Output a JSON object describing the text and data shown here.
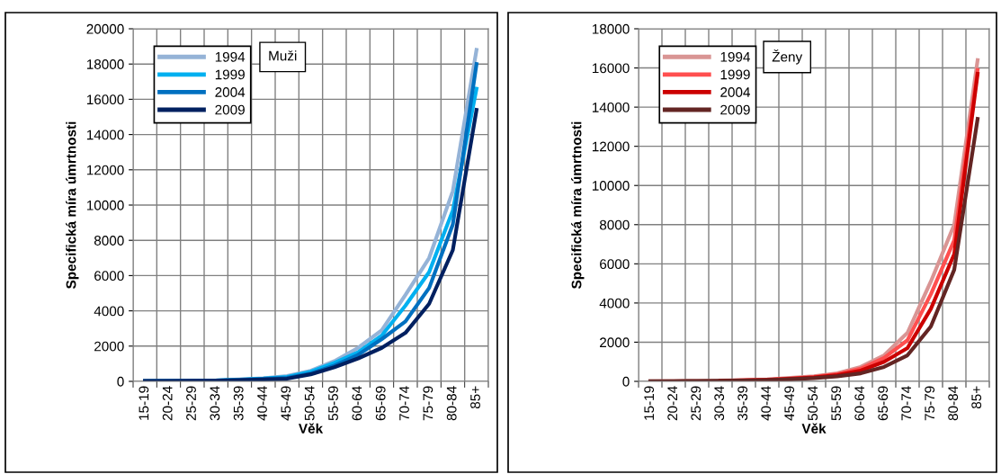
{
  "chart_data": [
    {
      "type": "line",
      "xlabel": "Věk",
      "ylabel": "Specifická míra úmrtnosti",
      "categories": [
        "15-19",
        "20-24",
        "25-29",
        "30-34",
        "35-39",
        "40-44",
        "45-49",
        "50-54",
        "55-59",
        "60-64",
        "65-69",
        "70-74",
        "75-79",
        "80-84",
        "85+"
      ],
      "ylim": [
        0,
        20000
      ],
      "yticks": [
        0,
        2000,
        4000,
        6000,
        8000,
        10000,
        12000,
        14000,
        16000,
        18000,
        20000
      ],
      "grid": true,
      "legend": "top left",
      "annotations": [
        "Muži"
      ],
      "series": [
        {
          "name": "1994",
          "color": "#95b3d7",
          "values": [
            20,
            30,
            40,
            60,
            110,
            180,
            300,
            600,
            1150,
            1900,
            2900,
            4900,
            7000,
            10800,
            18800
          ]
        },
        {
          "name": "1999",
          "color": "#00b0f0",
          "values": [
            null,
            null,
            40,
            50,
            100,
            160,
            250,
            550,
            1050,
            1650,
            2600,
            4300,
            6200,
            9700,
            16600
          ]
        },
        {
          "name": "2004",
          "color": "#0070c0",
          "values": [
            20,
            30,
            30,
            50,
            80,
            140,
            200,
            450,
            900,
            1500,
            2400,
            3400,
            5300,
            8900,
            18000
          ]
        },
        {
          "name": "2009",
          "color": "#002060",
          "values": [
            20,
            20,
            30,
            40,
            70,
            110,
            150,
            400,
            800,
            1300,
            1900,
            2750,
            4400,
            7450,
            15400
          ]
        }
      ]
    },
    {
      "type": "line",
      "xlabel": "Věk",
      "ylabel": "Specifická míra úmrtnosti",
      "categories": [
        "15-19",
        "20-24",
        "25-29",
        "30-34",
        "35-39",
        "40-44",
        "45-49",
        "50-54",
        "55-59",
        "60-64",
        "65-69",
        "70-74",
        "75-79",
        "80-84",
        "85+"
      ],
      "ylim": [
        0,
        18000
      ],
      "yticks": [
        0,
        2000,
        4000,
        6000,
        8000,
        10000,
        12000,
        14000,
        16000,
        18000
      ],
      "grid": true,
      "legend": "top left",
      "annotations": [
        "Ženy"
      ],
      "series": [
        {
          "name": "1994",
          "color": "#d99594",
          "values": [
            10,
            20,
            30,
            40,
            60,
            100,
            180,
            260,
            410,
            740,
            1330,
            2480,
            5100,
            8000,
            16400
          ]
        },
        {
          "name": "1999",
          "color": "#ff4f4f",
          "values": [
            null,
            null,
            null,
            30,
            50,
            90,
            150,
            230,
            370,
            650,
            1200,
            2100,
            4450,
            7200,
            15900
          ]
        },
        {
          "name": "2004",
          "color": "#cc0000",
          "values": [
            null,
            null,
            null,
            30,
            50,
            80,
            130,
            200,
            320,
            550,
            1000,
            1700,
            3700,
            6500,
            15700
          ]
        },
        {
          "name": "2009",
          "color": "#632523",
          "values": [
            10,
            10,
            20,
            30,
            40,
            70,
            110,
            170,
            260,
            410,
            740,
            1330,
            2800,
            5700,
            13400
          ]
        }
      ]
    }
  ]
}
